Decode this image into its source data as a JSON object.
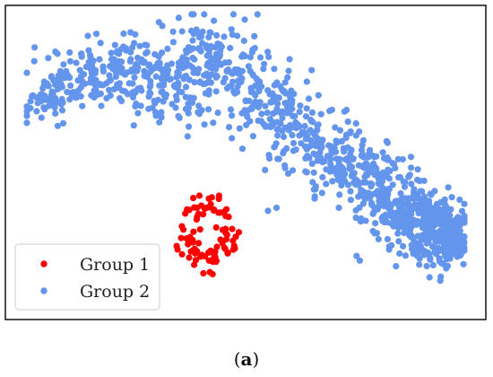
{
  "chart_data": {
    "type": "scatter",
    "title": "",
    "xlabel": "",
    "ylabel": "",
    "axes_ticks": "none",
    "grid": false,
    "legend_position": "bottom-left",
    "series": [
      {
        "name": "Group 1",
        "color": "#ff0000",
        "marker": "circle",
        "approx_count": 90,
        "cluster": "compact cloud with hollow center, lower-middle-left of the plot area"
      },
      {
        "name": "Group 2",
        "color": "#6495ed",
        "marker": "circle",
        "approx_count": 1200,
        "cluster": "arched band running from the left edge over the top to the lower right"
      }
    ]
  },
  "figure": {
    "caption_open": "(",
    "caption_letter": "a",
    "caption_close": ")"
  }
}
